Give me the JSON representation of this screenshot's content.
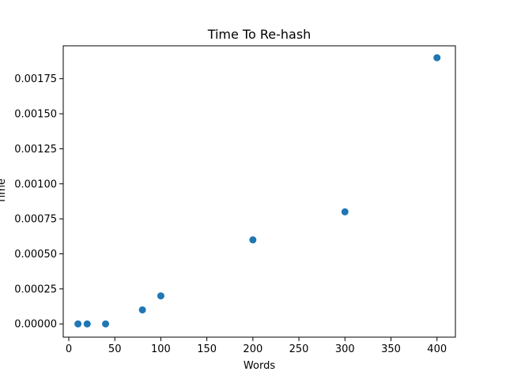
{
  "chart_data": {
    "type": "scatter",
    "title": "Time To Re-hash",
    "xlabel": "Words",
    "ylabel": "Time",
    "xlim": [
      -6,
      420
    ],
    "ylim": [
      -9.45e-05,
      0.001985
    ],
    "x_ticks": [
      0,
      50,
      100,
      150,
      200,
      250,
      300,
      350,
      400
    ],
    "x_tick_labels": [
      "0",
      "50",
      "100",
      "150",
      "200",
      "250",
      "300",
      "350",
      "400"
    ],
    "y_ticks": [
      0,
      0.00025,
      0.0005,
      0.00075,
      0.001,
      0.00125,
      0.0015,
      0.00175
    ],
    "y_tick_labels": [
      "0.00000",
      "0.00025",
      "0.00050",
      "0.00075",
      "0.00100",
      "0.00125",
      "0.00150",
      "0.00175"
    ],
    "grid": false,
    "legend": "none",
    "series": [
      {
        "color": "#1f77b4",
        "points": [
          {
            "x": 10,
            "y": 0.0
          },
          {
            "x": 20,
            "y": 0.0
          },
          {
            "x": 40,
            "y": 0.0
          },
          {
            "x": 80,
            "y": 0.0001
          },
          {
            "x": 100,
            "y": 0.0002
          },
          {
            "x": 200,
            "y": 0.0006
          },
          {
            "x": 300,
            "y": 0.0008
          },
          {
            "x": 400,
            "y": 0.0019
          }
        ]
      }
    ]
  }
}
